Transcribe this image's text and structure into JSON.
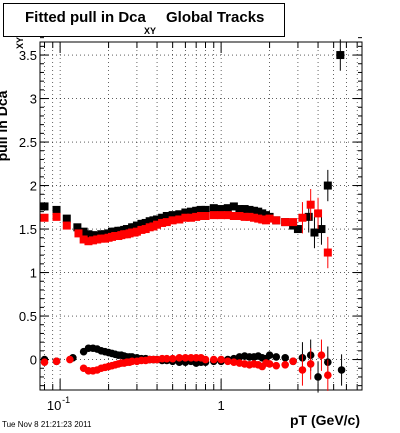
{
  "title": {
    "main": "Fitted pull in Dca",
    "subscript": "XY",
    "tail": "Global Tracks"
  },
  "axes": {
    "ylabel": "pull in Dca",
    "ylabel_subscript": "XY",
    "xlabel": "pT (GeV/c)"
  },
  "timestamp": "Tue Nov  8 21:21:23 2011",
  "colors": {
    "series_black": "#000000",
    "series_red": "#ff0000",
    "axis": "#000000"
  },
  "chart_data": {
    "type": "scatter",
    "x_scale": "log",
    "xlim": [
      0.075,
      7.5
    ],
    "ylim": [
      -0.35,
      3.65
    ],
    "grid": true,
    "x_tick_labels": [
      {
        "value": 0.1,
        "base": "10",
        "exp": "-1"
      },
      {
        "value": 1,
        "base": "1",
        "exp": ""
      }
    ],
    "y_ticks": [
      0,
      0.5,
      1,
      1.5,
      2,
      2.5,
      3,
      3.5
    ],
    "y_tick_labels": [
      "0",
      "0.5",
      "1",
      "1.5",
      "2",
      "2.5",
      "3",
      "3.5"
    ],
    "series": [
      {
        "color": "#000000",
        "marker": "square",
        "points": [
          [
            0.08,
            1.76
          ],
          [
            0.095,
            1.72
          ],
          [
            0.11,
            1.62
          ],
          [
            0.128,
            1.52
          ],
          [
            0.14,
            1.47
          ],
          [
            0.15,
            1.44
          ],
          [
            0.16,
            1.43
          ],
          [
            0.17,
            1.42
          ],
          [
            0.18,
            1.44
          ],
          [
            0.19,
            1.44
          ],
          [
            0.2,
            1.45
          ],
          [
            0.21,
            1.47
          ],
          [
            0.22,
            1.47
          ],
          [
            0.23,
            1.48
          ],
          [
            0.24,
            1.48
          ],
          [
            0.25,
            1.49
          ],
          [
            0.26,
            1.5
          ],
          [
            0.27,
            1.5
          ],
          [
            0.28,
            1.52
          ],
          [
            0.29,
            1.52
          ],
          [
            0.3,
            1.54
          ],
          [
            0.32,
            1.56
          ],
          [
            0.34,
            1.57
          ],
          [
            0.36,
            1.59
          ],
          [
            0.38,
            1.6
          ],
          [
            0.4,
            1.61
          ],
          [
            0.43,
            1.63
          ],
          [
            0.46,
            1.65
          ],
          [
            0.5,
            1.66
          ],
          [
            0.55,
            1.67
          ],
          [
            0.6,
            1.69
          ],
          [
            0.65,
            1.7
          ],
          [
            0.7,
            1.71
          ],
          [
            0.75,
            1.72
          ],
          [
            0.8,
            1.72
          ],
          [
            0.9,
            1.74
          ],
          [
            1.0,
            1.73
          ],
          [
            1.1,
            1.74
          ],
          [
            1.2,
            1.76
          ],
          [
            1.3,
            1.73
          ],
          [
            1.4,
            1.73
          ],
          [
            1.5,
            1.72
          ],
          [
            1.6,
            1.71
          ],
          [
            1.7,
            1.7
          ],
          [
            1.8,
            1.68
          ],
          [
            1.9,
            1.66
          ],
          [
            2.0,
            1.64
          ],
          [
            2.2,
            1.6
          ],
          [
            2.5,
            1.58
          ],
          [
            2.8,
            1.54
          ],
          [
            3.0,
            1.5
          ],
          [
            3.5,
            1.64
          ],
          [
            3.8,
            1.46
          ],
          [
            4.2,
            1.5
          ],
          [
            4.6,
            2.0
          ],
          [
            5.5,
            3.5
          ]
        ]
      },
      {
        "color": "#ff0000",
        "marker": "square",
        "points": [
          [
            0.08,
            1.63
          ],
          [
            0.095,
            1.64
          ],
          [
            0.11,
            1.54
          ],
          [
            0.13,
            1.45
          ],
          [
            0.14,
            1.38
          ],
          [
            0.15,
            1.36
          ],
          [
            0.16,
            1.37
          ],
          [
            0.17,
            1.38
          ],
          [
            0.18,
            1.39
          ],
          [
            0.19,
            1.39
          ],
          [
            0.2,
            1.4
          ],
          [
            0.21,
            1.41
          ],
          [
            0.22,
            1.42
          ],
          [
            0.23,
            1.42
          ],
          [
            0.24,
            1.43
          ],
          [
            0.25,
            1.44
          ],
          [
            0.26,
            1.44
          ],
          [
            0.27,
            1.45
          ],
          [
            0.28,
            1.46
          ],
          [
            0.29,
            1.46
          ],
          [
            0.3,
            1.47
          ],
          [
            0.32,
            1.49
          ],
          [
            0.34,
            1.5
          ],
          [
            0.36,
            1.52
          ],
          [
            0.38,
            1.53
          ],
          [
            0.4,
            1.55
          ],
          [
            0.43,
            1.57
          ],
          [
            0.46,
            1.58
          ],
          [
            0.5,
            1.6
          ],
          [
            0.55,
            1.61
          ],
          [
            0.6,
            1.63
          ],
          [
            0.65,
            1.63
          ],
          [
            0.7,
            1.64
          ],
          [
            0.75,
            1.65
          ],
          [
            0.8,
            1.65
          ],
          [
            0.9,
            1.66
          ],
          [
            1.0,
            1.66
          ],
          [
            1.1,
            1.66
          ],
          [
            1.2,
            1.65
          ],
          [
            1.3,
            1.65
          ],
          [
            1.4,
            1.64
          ],
          [
            1.5,
            1.64
          ],
          [
            1.6,
            1.63
          ],
          [
            1.7,
            1.62
          ],
          [
            1.8,
            1.61
          ],
          [
            1.9,
            1.6
          ],
          [
            2.0,
            1.62
          ],
          [
            2.2,
            1.6
          ],
          [
            2.5,
            1.58
          ],
          [
            2.8,
            1.58
          ],
          [
            3.2,
            1.63
          ],
          [
            3.6,
            1.78
          ],
          [
            4.0,
            1.68
          ],
          [
            4.6,
            1.23
          ]
        ]
      },
      {
        "color": "#000000",
        "marker": "circle",
        "points": [
          [
            0.08,
            0.0
          ],
          [
            0.095,
            -0.02
          ],
          [
            0.12,
            0.02
          ],
          [
            0.14,
            0.09
          ],
          [
            0.15,
            0.13
          ],
          [
            0.16,
            0.13
          ],
          [
            0.17,
            0.12
          ],
          [
            0.18,
            0.1
          ],
          [
            0.19,
            0.09
          ],
          [
            0.2,
            0.08
          ],
          [
            0.21,
            0.07
          ],
          [
            0.22,
            0.06
          ],
          [
            0.23,
            0.05
          ],
          [
            0.24,
            0.05
          ],
          [
            0.25,
            0.04
          ],
          [
            0.26,
            0.03
          ],
          [
            0.27,
            0.03
          ],
          [
            0.28,
            0.03
          ],
          [
            0.3,
            0.02
          ],
          [
            0.32,
            0.01
          ],
          [
            0.34,
            0.01
          ],
          [
            0.36,
            0.0
          ],
          [
            0.38,
            0.0
          ],
          [
            0.4,
            0.0
          ],
          [
            0.43,
            -0.01
          ],
          [
            0.46,
            -0.01
          ],
          [
            0.5,
            -0.02
          ],
          [
            0.55,
            -0.03
          ],
          [
            0.6,
            -0.03
          ],
          [
            0.65,
            -0.02
          ],
          [
            0.7,
            -0.04
          ],
          [
            0.75,
            -0.03
          ],
          [
            0.8,
            -0.03
          ],
          [
            0.9,
            -0.02
          ],
          [
            1.0,
            -0.02
          ],
          [
            1.1,
            0.0
          ],
          [
            1.2,
            0.01
          ],
          [
            1.3,
            0.03
          ],
          [
            1.4,
            0.04
          ],
          [
            1.5,
            0.03
          ],
          [
            1.6,
            0.03
          ],
          [
            1.7,
            0.04
          ],
          [
            1.8,
            0.02
          ],
          [
            1.9,
            0.01
          ],
          [
            2.0,
            0.05
          ],
          [
            2.2,
            0.03
          ],
          [
            2.5,
            0.02
          ],
          [
            2.8,
            -0.02
          ],
          [
            3.2,
            0.02
          ],
          [
            3.6,
            0.05
          ],
          [
            4.0,
            -0.2
          ],
          [
            4.6,
            -0.03
          ],
          [
            5.6,
            -0.12
          ]
        ]
      },
      {
        "color": "#ff0000",
        "marker": "circle",
        "points": [
          [
            0.08,
            -0.03
          ],
          [
            0.095,
            -0.02
          ],
          [
            0.115,
            0.0
          ],
          [
            0.14,
            -0.1
          ],
          [
            0.15,
            -0.13
          ],
          [
            0.16,
            -0.13
          ],
          [
            0.17,
            -0.12
          ],
          [
            0.18,
            -0.1
          ],
          [
            0.19,
            -0.09
          ],
          [
            0.2,
            -0.08
          ],
          [
            0.21,
            -0.07
          ],
          [
            0.22,
            -0.06
          ],
          [
            0.23,
            -0.05
          ],
          [
            0.24,
            -0.04
          ],
          [
            0.25,
            -0.04
          ],
          [
            0.26,
            -0.03
          ],
          [
            0.27,
            -0.03
          ],
          [
            0.28,
            -0.02
          ],
          [
            0.3,
            -0.02
          ],
          [
            0.32,
            -0.01
          ],
          [
            0.34,
            -0.01
          ],
          [
            0.36,
            0.0
          ],
          [
            0.38,
            0.0
          ],
          [
            0.4,
            0.0
          ],
          [
            0.43,
            0.01
          ],
          [
            0.46,
            0.01
          ],
          [
            0.5,
            0.01
          ],
          [
            0.55,
            0.02
          ],
          [
            0.6,
            0.02
          ],
          [
            0.65,
            0.02
          ],
          [
            0.7,
            0.02
          ],
          [
            0.75,
            0.02
          ],
          [
            0.8,
            0.0
          ],
          [
            0.9,
            0.0
          ],
          [
            1.0,
            0.0
          ],
          [
            1.1,
            -0.02
          ],
          [
            1.2,
            -0.03
          ],
          [
            1.3,
            -0.04
          ],
          [
            1.4,
            -0.05
          ],
          [
            1.5,
            -0.06
          ],
          [
            1.6,
            -0.05
          ],
          [
            1.7,
            -0.06
          ],
          [
            1.8,
            -0.08
          ],
          [
            1.9,
            -0.04
          ],
          [
            2.0,
            -0.05
          ],
          [
            2.2,
            -0.07
          ],
          [
            2.5,
            -0.06
          ],
          [
            2.8,
            -0.02
          ],
          [
            3.2,
            -0.12
          ],
          [
            3.6,
            -0.05
          ],
          [
            4.2,
            0.05
          ],
          [
            4.6,
            -0.18
          ]
        ]
      }
    ]
  }
}
